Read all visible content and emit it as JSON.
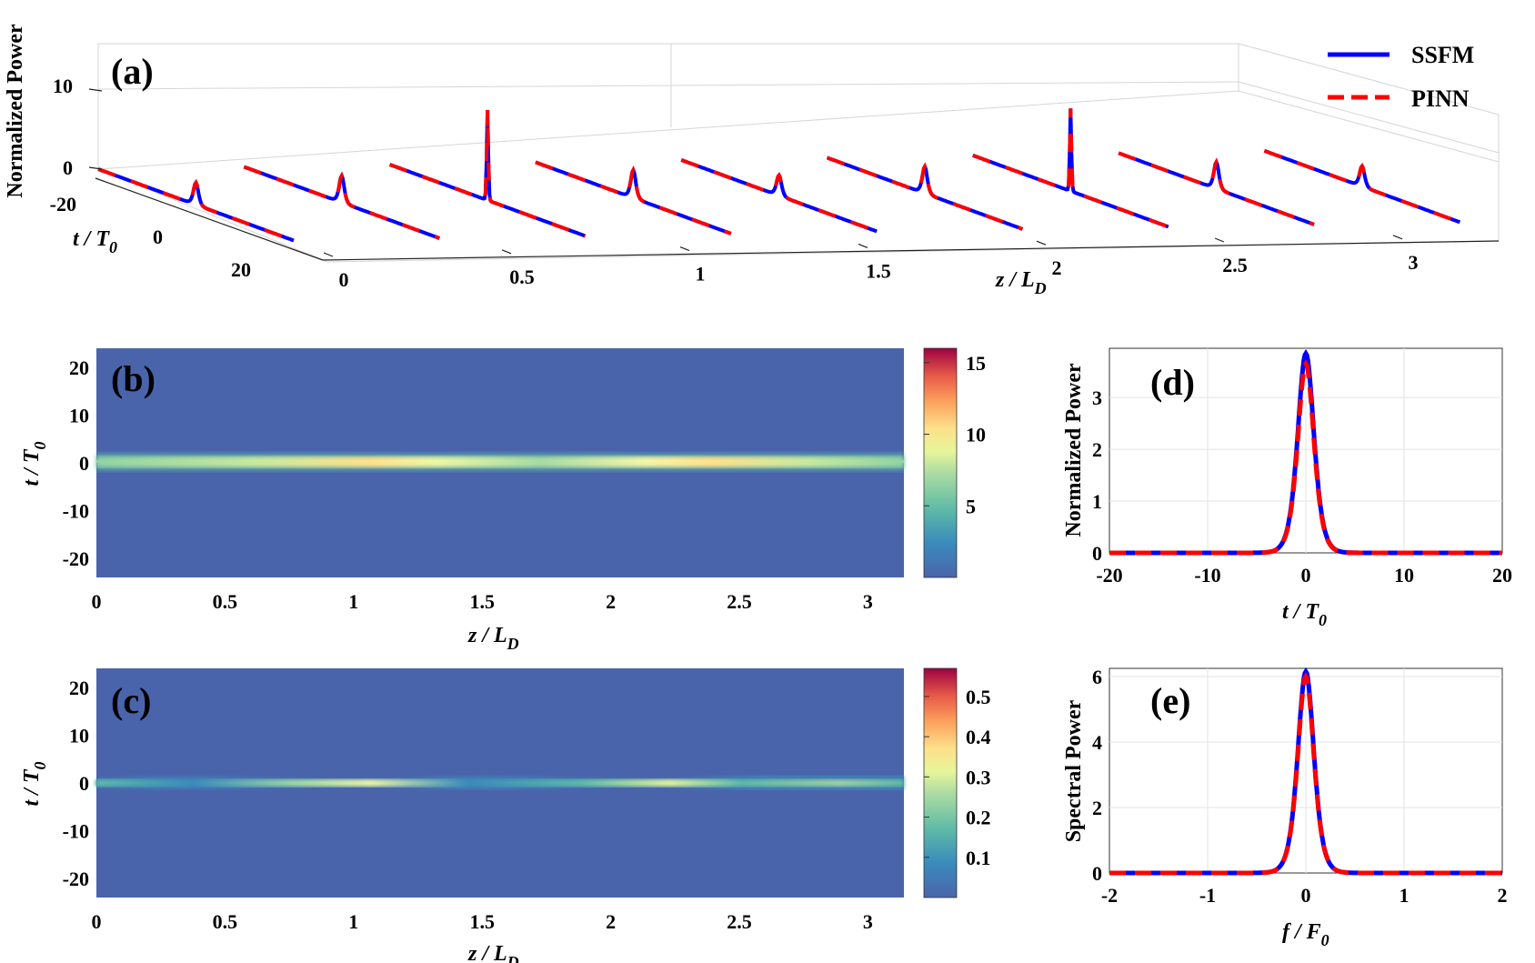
{
  "chart_data": [
    {
      "id": "a",
      "panel_label": "(a)",
      "type": "line",
      "title": "",
      "zlabel": "Normalized Power",
      "xlabel_t": "t / T",
      "xlabel_t_sub": "0",
      "zlabel_z": "z / L",
      "zlabel_z_sub": "D",
      "z_ticks": [
        "0",
        "0.5",
        "1",
        "1.5",
        "2",
        "2.5",
        "3"
      ],
      "t_ticks": [
        "-20",
        "0",
        "20"
      ],
      "p_ticks": [
        "10",
        "0"
      ],
      "slices_z": [
        0,
        0.35,
        0.7,
        1.05,
        1.4,
        1.75,
        2.1,
        2.45,
        2.8
      ],
      "peak_values": [
        3.8,
        4.6,
        15.5,
        4.8,
        3.5,
        4.6,
        14.2,
        4.6,
        3.5
      ],
      "legend": [
        {
          "name": "SSFM",
          "color": "#0000ff",
          "style": "solid"
        },
        {
          "name": "PINN",
          "color": "#ff0000",
          "style": "dashed"
        }
      ]
    },
    {
      "id": "b",
      "panel_label": "(b)",
      "type": "heatmap",
      "xlabel": "z / L",
      "xlabel_sub": "D",
      "ylabel": "t / T",
      "ylabel_sub": "0",
      "xlim": [
        0,
        3.14
      ],
      "ylim": [
        -24,
        24
      ],
      "x_ticks": [
        "0",
        "0.5",
        "1",
        "1.5",
        "2",
        "2.5",
        "3"
      ],
      "y_ticks": [
        "20",
        "10",
        "0",
        "-10",
        "-20"
      ],
      "colorbar_range": [
        0,
        16
      ],
      "colorbar_ticks": [
        "15",
        "10",
        "5"
      ]
    },
    {
      "id": "c",
      "panel_label": "(c)",
      "type": "heatmap",
      "xlabel": "z / L",
      "xlabel_sub": "D",
      "ylabel": "t / T",
      "ylabel_sub": "0",
      "xlim": [
        0,
        3.14
      ],
      "ylim": [
        -24,
        24
      ],
      "x_ticks": [
        "0",
        "0.5",
        "1",
        "1.5",
        "2",
        "2.5",
        "3"
      ],
      "y_ticks": [
        "20",
        "10",
        "0",
        "-10",
        "-20"
      ],
      "colorbar_range": [
        0,
        0.57
      ],
      "colorbar_ticks": [
        "0.5",
        "0.4",
        "0.3",
        "0.2",
        "0.1"
      ]
    },
    {
      "id": "d",
      "panel_label": "(d)",
      "type": "line",
      "xlabel": "t / T",
      "xlabel_sub": "0",
      "ylabel": "Normalized Power",
      "xlim": [
        -20,
        20
      ],
      "ylim": [
        0,
        3.95
      ],
      "x_ticks": [
        "-20",
        "-10",
        "0",
        "10",
        "20"
      ],
      "y_ticks": [
        "3",
        "2",
        "1",
        "0"
      ],
      "series": [
        {
          "name": "SSFM",
          "peak": 3.85,
          "width": 1.1
        },
        {
          "name": "PINN",
          "peak": 3.65,
          "width": 1.1
        }
      ]
    },
    {
      "id": "e",
      "panel_label": "(e)",
      "type": "line",
      "xlabel": "f / F",
      "xlabel_sub": "0",
      "ylabel": "Spectral Power",
      "xlim": [
        -2,
        2
      ],
      "ylim": [
        0,
        6.25
      ],
      "x_ticks": [
        "-2",
        "-1",
        "0",
        "1",
        "2"
      ],
      "y_ticks": [
        "6",
        "4",
        "2",
        "0"
      ],
      "series": [
        {
          "name": "SSFM",
          "peak": 6.15,
          "width": 0.11
        },
        {
          "name": "PINN",
          "peak": 6.0,
          "width": 0.11
        }
      ]
    }
  ]
}
